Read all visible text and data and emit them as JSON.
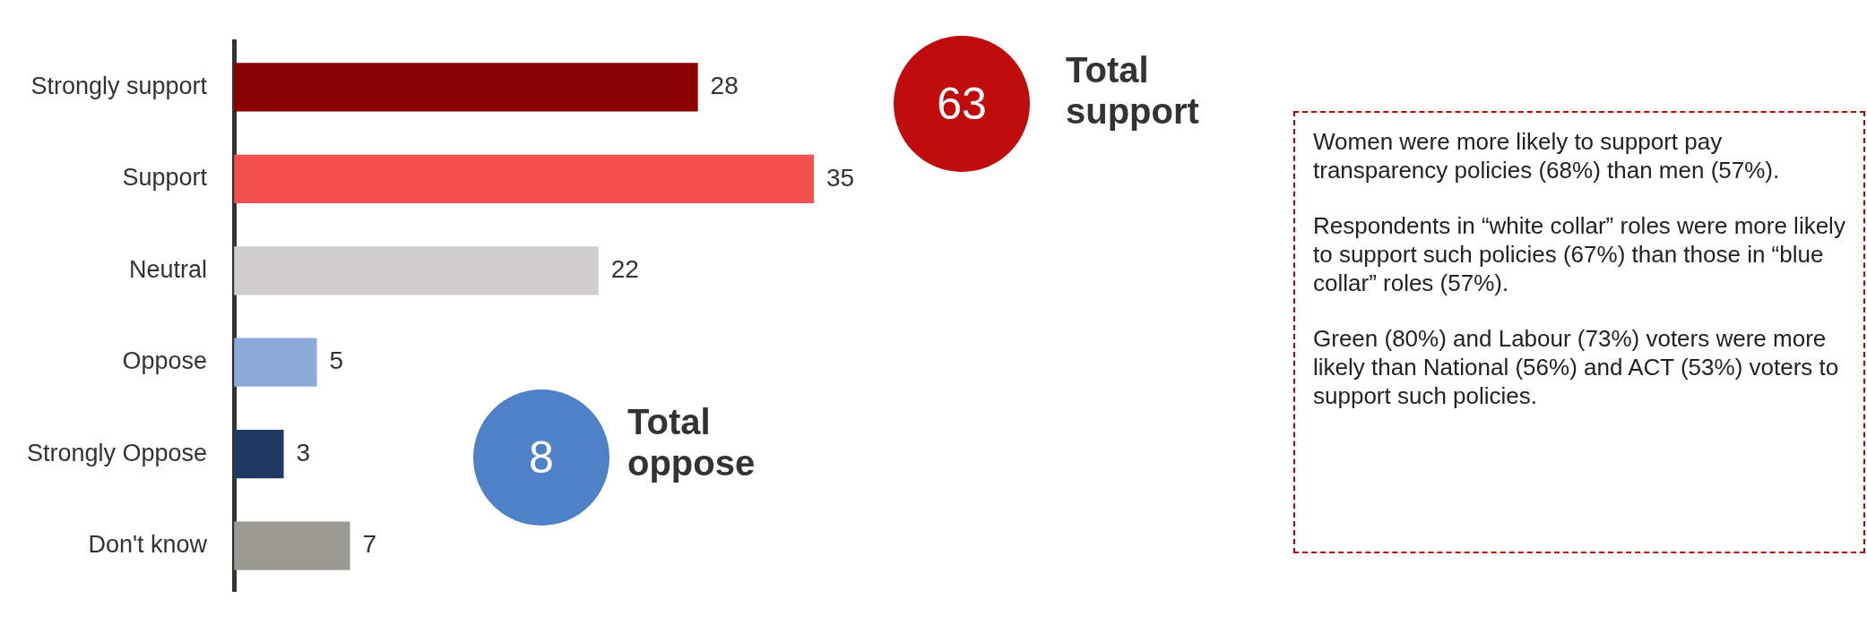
{
  "chart_data": {
    "type": "bar",
    "orientation": "horizontal",
    "categories": [
      "Strongly support",
      "Support",
      "Neutral",
      "Oppose",
      "Strongly Oppose",
      "Don't know"
    ],
    "values": [
      28,
      35,
      22,
      5,
      3,
      7
    ],
    "colors": [
      "#8b0000",
      "#f55050",
      "#d0cecf",
      "#8eaadb",
      "#1f3864",
      "#9a9a92"
    ],
    "data_labels": true,
    "legend": false,
    "annotations": [
      "63",
      "Total support",
      "8",
      "Total oppose",
      "Women were more likely to support pay transparency policies (68%) than men (57%).",
      "Respondents in “white collar” roles were more likely to support such policies (67%) than those in “blue collar” roles (57%).",
      "Green (80%) and Labour (73%) voters were more likely than National (56%) and ACT (53%) voters to support such policies."
    ]
  }
}
